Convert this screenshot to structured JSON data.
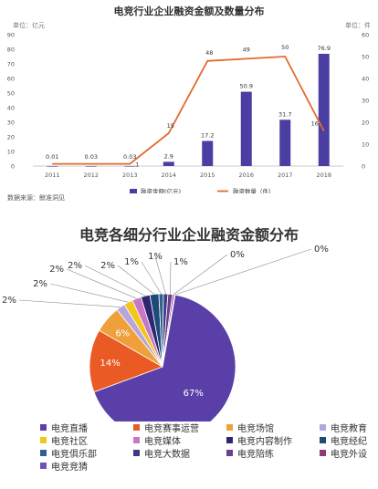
{
  "chart_data": [
    {
      "type": "bar+line",
      "title": "电竞行业企业融资金额及数量分布",
      "left_axis_unit": "单位：亿元",
      "right_axis_unit": "单位：件",
      "source": "数据来源：鲸准洞见",
      "categories": [
        "2011",
        "2012",
        "2013",
        "2014",
        "2015",
        "2016",
        "2017",
        "2018"
      ],
      "left_ticks": [
        "0",
        "10",
        "20",
        "30",
        "40",
        "50",
        "60",
        "70",
        "80",
        "90"
      ],
      "right_ticks": [
        "0",
        "10",
        "20",
        "30",
        "40",
        "50",
        "60"
      ],
      "ylim_left": [
        0,
        90
      ],
      "ylim_right": [
        0,
        60
      ],
      "series": [
        {
          "name": "融资金额(亿元)",
          "kind": "bar",
          "axis": "left",
          "color": "#4b3ea3",
          "values": [
            0.01,
            0.03,
            0.03,
            2.9,
            17.2,
            50.9,
            31.7,
            76.9
          ],
          "labels": [
            "0.01",
            "0.03",
            "0.03",
            "2.9",
            "17.2",
            "50.9",
            "31.7",
            "76.9"
          ]
        },
        {
          "name": "融资数量（件）",
          "kind": "line",
          "axis": "right",
          "color": "#e36a2e",
          "values": [
            1,
            1,
            1,
            15,
            48,
            49,
            50,
            16
          ],
          "labels": [
            "",
            "",
            "1",
            "15",
            "48",
            "49",
            "50",
            "16"
          ]
        }
      ]
    },
    {
      "type": "pie",
      "title": "电竞各细分行业企业融资金额分布",
      "slices": [
        {
          "name": "电竞直播",
          "value": 67,
          "label": "67%",
          "color": "#5b3fa8"
        },
        {
          "name": "电竞赛事运营",
          "value": 14,
          "label": "14%",
          "color": "#ea5a25"
        },
        {
          "name": "电竞场馆",
          "value": 6,
          "label": "6%",
          "color": "#f0a03a"
        },
        {
          "name": "电竞教育",
          "value": 2,
          "label": "2%",
          "color": "#b7a6de"
        },
        {
          "name": "电竞社区",
          "value": 2,
          "label": "2%",
          "color": "#f4c61c"
        },
        {
          "name": "电竞媒体",
          "value": 2,
          "label": "2%",
          "color": "#c678c6"
        },
        {
          "name": "电竞内容制作",
          "value": 2,
          "label": "2%",
          "color": "#2e2670"
        },
        {
          "name": "电竞经纪",
          "value": 2,
          "label": "2%",
          "color": "#1d4a78"
        },
        {
          "name": "电竞俱乐部",
          "value": 1,
          "label": "1%",
          "color": "#2f5f8e"
        },
        {
          "name": "电竞大数据",
          "value": 1,
          "label": "1%",
          "color": "#3c3a82"
        },
        {
          "name": "电竞陪练",
          "value": 1,
          "label": "1%",
          "color": "#6a3e92"
        },
        {
          "name": "电竞外设",
          "value": 0.4,
          "label": "0%",
          "color": "#8e3a78"
        },
        {
          "name": "电竞竞猜",
          "value": 0.2,
          "label": "0%",
          "color": "#6f52b8"
        }
      ]
    }
  ]
}
